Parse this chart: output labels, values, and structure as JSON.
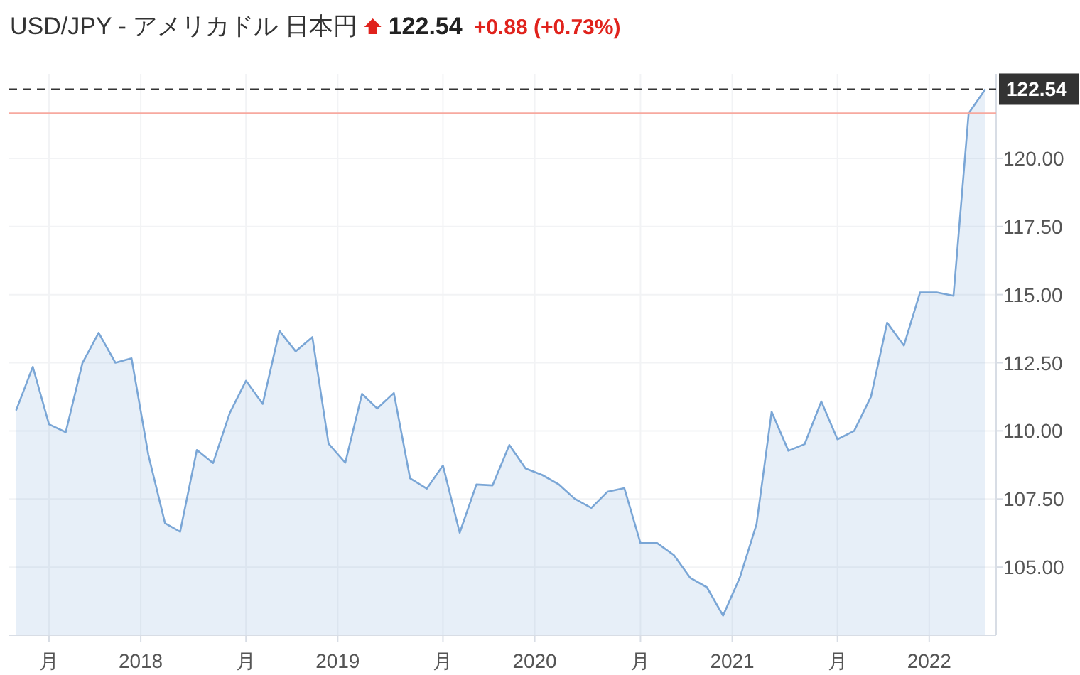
{
  "chart_data": {
    "type": "area",
    "title": "USD/JPY - アメリカドル 日本円",
    "subtitle": "122.54",
    "annotations": [
      "+0.88 (+0.73%)"
    ],
    "x": [
      "2017-05-15",
      "2017-06-15",
      "2017-07-15",
      "2017-08-15",
      "2017-09-15",
      "2017-10-15",
      "2017-11-15",
      "2017-12-15",
      "2018-01-15",
      "2018-02-15",
      "2018-03-15",
      "2018-04-15",
      "2018-05-15",
      "2018-06-15",
      "2018-07-15",
      "2018-08-15",
      "2018-09-15",
      "2018-10-15",
      "2018-11-15",
      "2018-12-15",
      "2019-01-15",
      "2019-02-15",
      "2019-03-15",
      "2019-04-15",
      "2019-05-15",
      "2019-06-15",
      "2019-07-15",
      "2019-08-15",
      "2019-09-15",
      "2019-10-15",
      "2019-11-15",
      "2019-12-15",
      "2020-01-15",
      "2020-02-15",
      "2020-03-15",
      "2020-04-15",
      "2020-05-15",
      "2020-06-15",
      "2020-07-15",
      "2020-08-15",
      "2020-09-15",
      "2020-10-15",
      "2020-11-15",
      "2020-12-15",
      "2021-01-15",
      "2021-02-15",
      "2021-03-15",
      "2021-04-15",
      "2021-05-15",
      "2021-06-15",
      "2021-07-15",
      "2021-08-15",
      "2021-09-15",
      "2021-10-15",
      "2021-11-15",
      "2021-12-15",
      "2022-01-15",
      "2022-02-15",
      "2022-03-15",
      "2022-04-15"
    ],
    "series": [
      {
        "color": "#7aa6d6",
        "values": [
          110.75,
          112.35,
          110.24,
          109.95,
          112.49,
          113.6,
          112.5,
          112.66,
          109.13,
          106.61,
          106.3,
          109.3,
          108.82,
          110.66,
          111.84,
          110.99,
          113.67,
          112.92,
          113.44,
          109.53,
          108.83,
          111.36,
          110.82,
          111.39,
          108.26,
          107.88,
          108.73,
          106.26,
          108.03,
          108.0,
          109.48,
          108.62,
          108.38,
          108.03,
          107.51,
          107.17,
          107.77,
          107.9,
          105.88,
          105.88,
          105.44,
          104.61,
          104.26,
          103.22,
          104.61,
          106.57,
          110.7,
          109.27,
          109.51,
          111.08,
          109.69,
          110.0,
          111.25,
          113.97,
          113.13,
          115.08,
          115.08,
          114.96,
          121.65,
          122.54
        ]
      }
    ],
    "xlim": [
      "2017-05-01",
      "2022-05-05"
    ],
    "xticks": [
      {
        "value": "2017-07-15",
        "label": "月"
      },
      {
        "value": "2018-01-01",
        "label": "2018"
      },
      {
        "value": "2018-07-15",
        "label": "月"
      },
      {
        "value": "2019-01-01",
        "label": "2019"
      },
      {
        "value": "2019-07-15",
        "label": "月"
      },
      {
        "value": "2020-01-01",
        "label": "2020"
      },
      {
        "value": "2020-07-15",
        "label": "月"
      },
      {
        "value": "2021-01-01",
        "label": "2021"
      },
      {
        "value": "2021-07-15",
        "label": "月"
      },
      {
        "value": "2022-01-01",
        "label": "2022"
      }
    ],
    "ylim": [
      102.5,
      123.1
    ],
    "yticks": [
      {
        "value": 105,
        "label": "105.00"
      },
      {
        "value": 107.5,
        "label": "107.50"
      },
      {
        "value": 110,
        "label": "110.00"
      },
      {
        "value": 112.5,
        "label": "112.50"
      },
      {
        "value": 115,
        "label": "115.00"
      },
      {
        "value": 117.5,
        "label": "117.50"
      },
      {
        "value": 120,
        "label": "120.00"
      }
    ],
    "ref_lines": [
      {
        "axis": "y",
        "value": 121.66,
        "color": "#f7a99f",
        "line_style": "solid"
      },
      {
        "axis": "y",
        "value": 122.54,
        "label": "122.54",
        "color": "#333333",
        "line_style": "dashed"
      }
    ],
    "grid": true
  }
}
